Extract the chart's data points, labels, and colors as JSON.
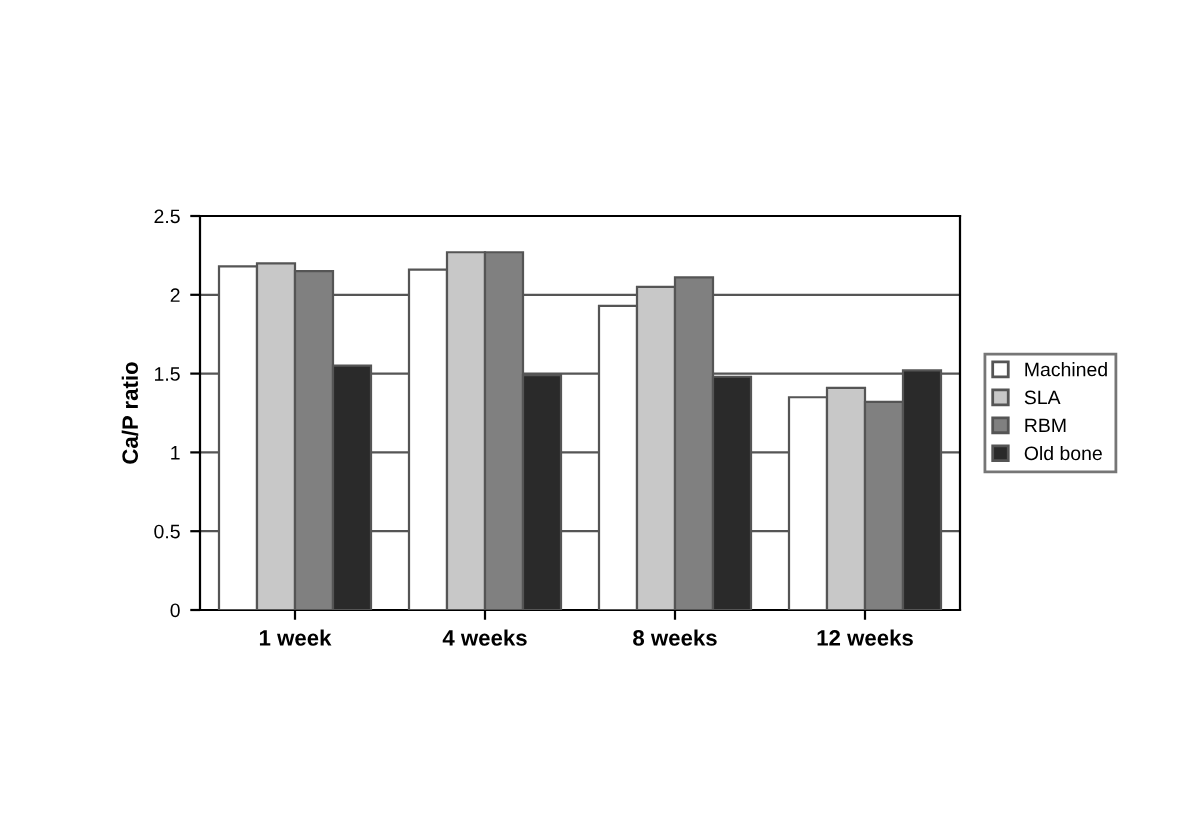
{
  "chart_data": {
    "type": "bar",
    "ylabel": "Ca/P ratio",
    "categories": [
      "1 week",
      "4 weeks",
      "8 weeks",
      "12 weeks"
    ],
    "series": [
      {
        "name": "Machined",
        "color": "#ffffff",
        "values": [
          2.18,
          2.16,
          1.93,
          1.35
        ]
      },
      {
        "name": "SLA",
        "color": "#c8c8c8",
        "values": [
          2.2,
          2.27,
          2.05,
          1.41
        ]
      },
      {
        "name": "RBM",
        "color": "#808080",
        "values": [
          2.15,
          2.27,
          2.11,
          1.32
        ]
      },
      {
        "name": "Old bone",
        "color": "#2a2a2a",
        "values": [
          1.55,
          1.49,
          1.48,
          1.52
        ]
      }
    ],
    "ylim": [
      0,
      2.5
    ],
    "yticks": [
      0,
      0.5,
      1,
      1.5,
      2,
      2.5
    ],
    "grid": "y",
    "legend": "right"
  }
}
